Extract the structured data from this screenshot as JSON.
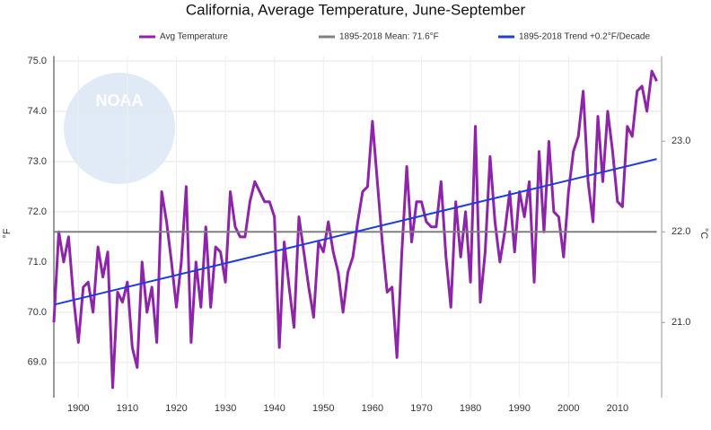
{
  "chart_data": {
    "type": "line",
    "title": "California, Average Temperature, June-September",
    "watermark": "NOAA",
    "y_label": "°F",
    "y2_label": "°C",
    "x": [
      1895,
      1896,
      1897,
      1898,
      1899,
      1900,
      1901,
      1902,
      1903,
      1904,
      1905,
      1906,
      1907,
      1908,
      1909,
      1910,
      1911,
      1912,
      1913,
      1914,
      1915,
      1916,
      1917,
      1918,
      1919,
      1920,
      1921,
      1922,
      1923,
      1924,
      1925,
      1926,
      1927,
      1928,
      1929,
      1930,
      1931,
      1932,
      1933,
      1934,
      1935,
      1936,
      1937,
      1938,
      1939,
      1940,
      1941,
      1942,
      1943,
      1944,
      1945,
      1946,
      1947,
      1948,
      1949,
      1950,
      1951,
      1952,
      1953,
      1954,
      1955,
      1956,
      1957,
      1958,
      1959,
      1960,
      1961,
      1962,
      1963,
      1964,
      1965,
      1966,
      1967,
      1968,
      1969,
      1970,
      1971,
      1972,
      1973,
      1974,
      1975,
      1976,
      1977,
      1978,
      1979,
      1980,
      1981,
      1982,
      1983,
      1984,
      1985,
      1986,
      1987,
      1988,
      1989,
      1990,
      1991,
      1992,
      1993,
      1994,
      1995,
      1996,
      1997,
      1998,
      1999,
      2000,
      2001,
      2002,
      2003,
      2004,
      2005,
      2006,
      2007,
      2008,
      2009,
      2010,
      2011,
      2012,
      2013,
      2014,
      2015,
      2016,
      2017,
      2018
    ],
    "series": [
      {
        "name": "Avg Temperature",
        "color": "#8e24aa",
        "values": [
          69.8,
          71.6,
          71.0,
          71.5,
          70.3,
          69.4,
          70.5,
          70.6,
          70.0,
          71.3,
          70.7,
          71.2,
          68.5,
          70.4,
          70.2,
          70.6,
          69.3,
          68.9,
          71.0,
          70.0,
          70.5,
          69.4,
          72.4,
          71.8,
          71.0,
          70.1,
          71.0,
          72.5,
          69.4,
          71.0,
          70.1,
          71.7,
          70.1,
          71.3,
          71.2,
          70.6,
          72.4,
          71.7,
          71.5,
          71.5,
          72.2,
          72.6,
          72.4,
          72.2,
          72.2,
          71.9,
          69.3,
          71.4,
          70.5,
          69.7,
          71.9,
          71.2,
          70.5,
          69.9,
          71.4,
          71.2,
          71.8,
          71.2,
          70.8,
          70.0,
          70.8,
          71.1,
          71.8,
          72.4,
          72.5,
          73.8,
          72.6,
          71.4,
          70.4,
          70.5,
          69.1,
          71.2,
          72.9,
          71.4,
          72.2,
          72.2,
          71.8,
          71.7,
          71.7,
          72.6,
          71.1,
          70.1,
          72.2,
          71.1,
          72.0,
          70.6,
          73.7,
          70.2,
          71.2,
          73.1,
          71.8,
          71.0,
          71.6,
          72.4,
          71.2,
          72.4,
          71.9,
          72.6,
          70.6,
          73.2,
          71.6,
          73.4,
          72.0,
          71.9,
          71.1,
          72.4,
          73.2,
          73.5,
          74.4,
          72.6,
          71.8,
          73.9,
          72.6,
          74.0,
          73.2,
          72.2,
          72.1,
          73.7,
          73.5,
          74.4,
          74.5,
          74.0,
          74.8,
          74.6
        ]
      },
      {
        "name": "1895-2018 Mean: 71.6°F",
        "color": "#808080",
        "x": [
          1895,
          2018
        ],
        "values": [
          71.6,
          71.6
        ]
      },
      {
        "name": "1895-2018 Trend +0.2°F/Decade",
        "color": "#1e3ce0",
        "x": [
          1895,
          2018
        ],
        "values": [
          70.15,
          73.05
        ]
      }
    ],
    "xlim": [
      1895,
      2019
    ],
    "xticks": [
      1900,
      1910,
      1920,
      1930,
      1940,
      1950,
      1960,
      1970,
      1980,
      1990,
      2000,
      2010
    ],
    "ylim": [
      68.3,
      75.1
    ],
    "yticks": [
      {
        "value": 69,
        "label": "69.0"
      },
      {
        "value": 70,
        "label": "70.0"
      },
      {
        "value": 71,
        "label": "71.0"
      },
      {
        "value": 72,
        "label": "72.0"
      },
      {
        "value": 73,
        "label": "73.0"
      },
      {
        "value": 74,
        "label": "74.0"
      },
      {
        "value": 75,
        "label": "75.0"
      }
    ],
    "y2lim": [
      20.17,
      23.94
    ],
    "y2ticks": [
      {
        "value": 21,
        "label": "21.0"
      },
      {
        "value": 22,
        "label": "22.0"
      },
      {
        "value": 23,
        "label": "23.0"
      }
    ],
    "grid": true
  }
}
